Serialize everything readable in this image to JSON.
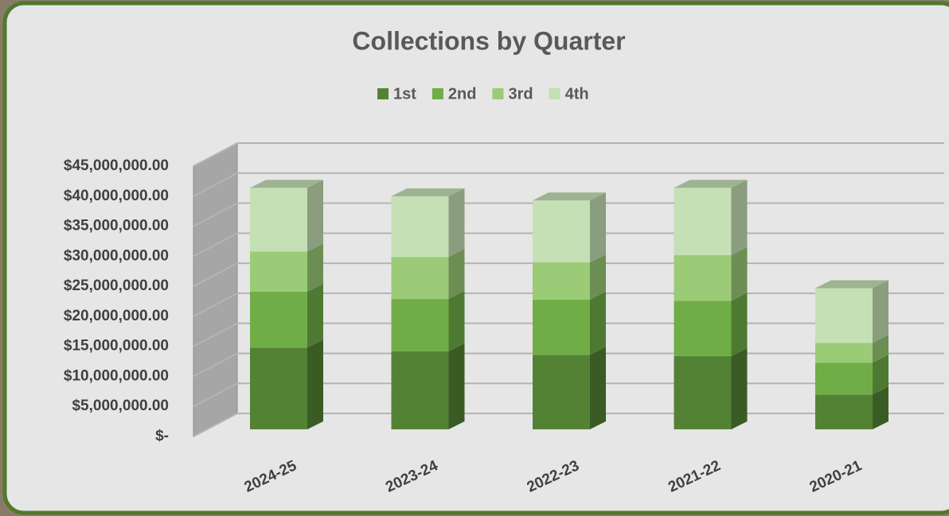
{
  "chart_data": {
    "type": "bar3d-stacked",
    "title": "Collections by Quarter",
    "categories": [
      "2024-25",
      "2023-24",
      "2022-23",
      "2021-22",
      "2020-21"
    ],
    "series": [
      {
        "name": "1st",
        "color": "#548235",
        "values": [
          13600000,
          13000000,
          12400000,
          12200000,
          5800000
        ]
      },
      {
        "name": "2nd",
        "color": "#70ad47",
        "values": [
          9300000,
          8700000,
          9200000,
          9200000,
          5300000
        ]
      },
      {
        "name": "3rd",
        "color": "#9bcb77",
        "values": [
          6700000,
          7000000,
          6200000,
          7600000,
          3300000
        ]
      },
      {
        "name": "4th",
        "color": "#c5e0b4",
        "values": [
          10600000,
          10100000,
          10300000,
          11200000,
          9100000
        ]
      }
    ],
    "ylim": [
      0,
      45000000
    ],
    "yticks": [
      {
        "value": 0,
        "label": "$-"
      },
      {
        "value": 5000000,
        "label": "$5,000,000.00"
      },
      {
        "value": 10000000,
        "label": "$10,000,000.00"
      },
      {
        "value": 15000000,
        "label": "$15,000,000.00"
      },
      {
        "value": 20000000,
        "label": "$20,000,000.00"
      },
      {
        "value": 25000000,
        "label": "$25,000,000.00"
      },
      {
        "value": 30000000,
        "label": "$30,000,000.00"
      },
      {
        "value": 35000000,
        "label": "$35,000,000.00"
      },
      {
        "value": 40000000,
        "label": "$40,000,000.00"
      },
      {
        "value": 45000000,
        "label": "$45,000,000.00"
      }
    ],
    "grid": true,
    "legend": "top"
  }
}
